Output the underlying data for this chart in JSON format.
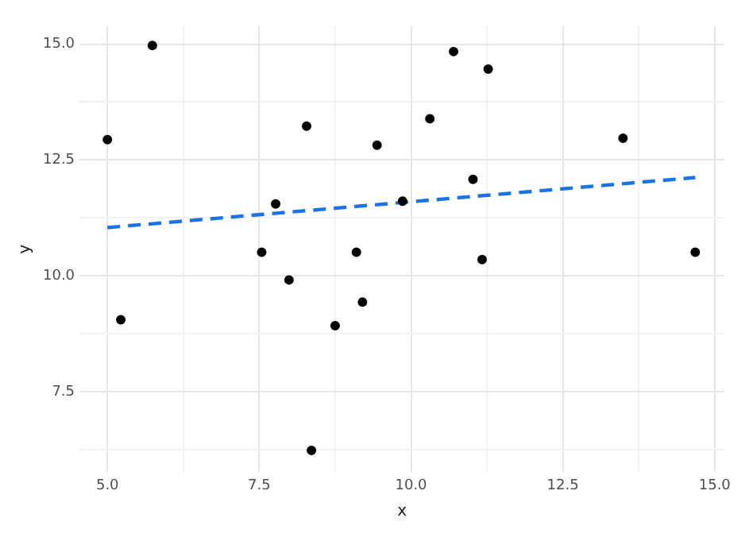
{
  "chart_data": {
    "type": "scatter",
    "xlabel": "x",
    "ylabel": "y",
    "xlim": [
      4.54,
      15.16
    ],
    "ylim": [
      5.76,
      15.39
    ],
    "xticks": [
      {
        "value": 5,
        "label": "5.0"
      },
      {
        "value": 6.25,
        "label": null
      },
      {
        "value": 7.5,
        "label": "7.5"
      },
      {
        "value": 8.75,
        "label": null
      },
      {
        "value": 10,
        "label": "10.0"
      },
      {
        "value": 11.25,
        "label": null
      },
      {
        "value": 12.5,
        "label": "12.5"
      },
      {
        "value": 13.75,
        "label": null
      },
      {
        "value": 15,
        "label": "15.0"
      }
    ],
    "yticks": [
      {
        "value": 6.25,
        "label": null
      },
      {
        "value": 7.5,
        "label": "7.5"
      },
      {
        "value": 8.75,
        "label": null
      },
      {
        "value": 10,
        "label": "10.0"
      },
      {
        "value": 11.25,
        "label": null
      },
      {
        "value": 12.5,
        "label": "12.5"
      },
      {
        "value": 13.75,
        "label": null
      },
      {
        "value": 15,
        "label": "15.0"
      }
    ],
    "grid": true,
    "legend": false,
    "series": [
      {
        "color": "#000000",
        "marker": "circle",
        "x": [
          5.0,
          5.22,
          5.74,
          7.54,
          7.77,
          7.99,
          8.28,
          8.36,
          8.75,
          9.1,
          9.2,
          9.44,
          9.86,
          10.31,
          10.7,
          11.02,
          11.17,
          11.27,
          13.49,
          14.68
        ],
        "values": [
          12.94,
          9.05,
          14.97,
          10.51,
          11.55,
          9.91,
          13.23,
          6.23,
          8.92,
          10.51,
          9.43,
          12.82,
          11.61,
          13.39,
          14.84,
          12.08,
          10.35,
          14.46,
          12.97,
          10.51
        ]
      },
      {
        "type": "line",
        "color": "#1a73e8",
        "line_style": "dashed",
        "marker": "none",
        "x": [
          5.0,
          14.68
        ],
        "values": [
          11.04,
          12.12
        ]
      }
    ]
  }
}
